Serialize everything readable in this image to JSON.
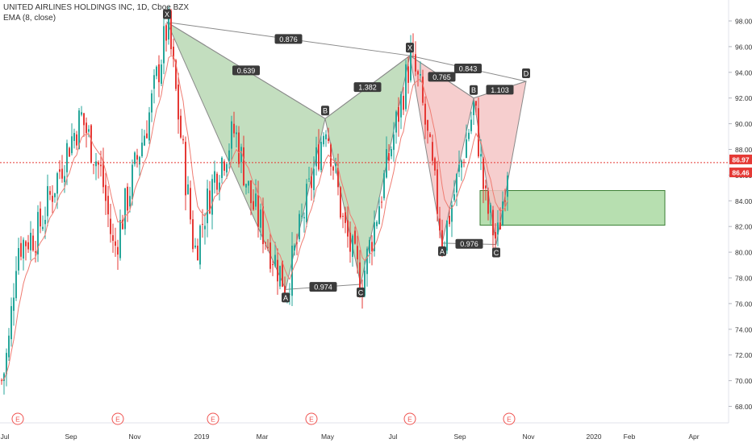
{
  "header": {
    "symbol": "UNITED AIRLINES HOLDINGS INC, 1D, Cboe BZX",
    "indicator": "EMA (8, close)"
  },
  "colors": {
    "up": "#26a69a",
    "down": "#e53935",
    "ema": "#ef7c72",
    "pattern1_fill": "#b9d8b4",
    "pattern2_fill": "#f4c6c6",
    "pattern_line": "#8a8a8a",
    "target_fill": "#b7dfb0",
    "target_border": "#3a7d33",
    "price_line": "#e53935",
    "label_bg": "#3b3b3b",
    "event_badge": "#ef5350"
  },
  "chart_data": {
    "type": "candlestick",
    "title": "UNITED AIRLINES HOLDINGS INC, 1D, Cboe BZX",
    "ylim": [
      66.5,
      99.6
    ],
    "y_ticks": [
      "98.00",
      "96.00",
      "94.00",
      "92.00",
      "90.00",
      "88.00",
      "86.00",
      "84.00",
      "82.00",
      "80.00",
      "78.00",
      "76.00",
      "74.00",
      "72.00",
      "70.00",
      "68.00"
    ],
    "x_ticks": [
      "Jul",
      "Sep",
      "Nov",
      "2019",
      "Mar",
      "May",
      "Jul",
      "Sep",
      "Nov",
      "2020",
      "Feb",
      "Apr"
    ],
    "grid": false,
    "price_labels": [
      {
        "text": "86.97",
        "value": 86.97,
        "color": "#e53935"
      },
      {
        "text": "86.46",
        "value": 86.46,
        "color": "#e53935"
      }
    ],
    "price_path": [
      [
        "Jul",
        70.0
      ],
      [
        "Jul",
        73.0
      ],
      [
        "Jul",
        80.5
      ],
      [
        "Jul",
        81.5
      ],
      [
        "Sep",
        88.5
      ],
      [
        "Sep",
        90.5
      ],
      [
        "Sep",
        86.0
      ],
      [
        "Sep",
        80.0
      ],
      [
        "Nov",
        87.5
      ],
      [
        "Nov",
        91.0
      ],
      [
        "Nov",
        97.8
      ],
      [
        "2019",
        88.0
      ],
      [
        "2019",
        80.0
      ],
      [
        "2019",
        86.0
      ],
      [
        "Mar",
        89.5
      ],
      [
        "Mar",
        84.0
      ],
      [
        "Mar",
        77.2
      ],
      [
        "May",
        90.3
      ],
      [
        "May",
        82.0
      ],
      [
        "May",
        77.5
      ],
      [
        "Jul",
        90.0
      ],
      [
        "Jul",
        95.2
      ],
      [
        "Jul",
        92.5
      ],
      [
        "Sep",
        80.7
      ],
      [
        "Sep",
        91.5
      ],
      [
        "Sep",
        84.0
      ],
      [
        "Sep",
        80.7
      ],
      [
        "Nov",
        86.97
      ]
    ],
    "ema": {
      "name": "EMA (8, close)"
    },
    "patterns": [
      {
        "points": [
          {
            "label": "X",
            "date": "Nov",
            "value": 97.9
          },
          {
            "label": "A",
            "date": "Mar",
            "value": 77.1
          },
          {
            "label": "B",
            "date": "May",
            "value": 90.4
          },
          {
            "label": "C",
            "date": "May",
            "value": 77.5
          },
          {
            "label": "D",
            "date": "Jul",
            "value": 95.3
          }
        ],
        "ratios": [
          "0.639",
          "1.382",
          "0.974",
          "0.876"
        ]
      },
      {
        "points": [
          {
            "label": "X",
            "date": "Jul",
            "value": 95.3
          },
          {
            "label": "A",
            "date": "Aug",
            "value": 80.7
          },
          {
            "label": "B",
            "date": "Sep",
            "value": 92.0
          },
          {
            "label": "C",
            "date": "Oct",
            "value": 80.6
          },
          {
            "label": "D",
            "date": "Nov",
            "value": 93.3
          }
        ],
        "ratios": [
          "0.765",
          "1.103",
          "0.976",
          "0.843"
        ]
      }
    ],
    "target_zone": {
      "from": "Oct",
      "to": "Feb",
      "low": 82.1,
      "high": 84.8
    },
    "events": [
      "E",
      "E",
      "E",
      "E",
      "E",
      "E"
    ]
  }
}
